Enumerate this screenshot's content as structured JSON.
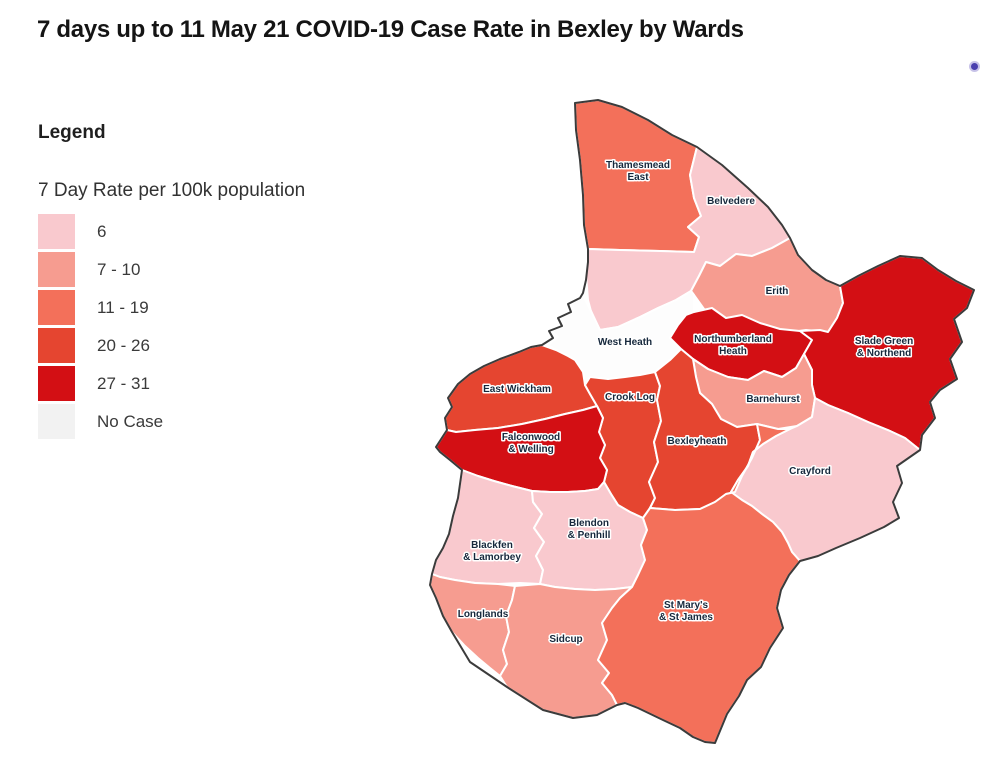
{
  "title": "7 days up to 11 May 21 COVID-19 Case Rate in Bexley by Wards",
  "legend": {
    "heading": "Legend",
    "subtitle": "7 Day Rate per 100k population",
    "items": [
      {
        "label": "6",
        "color": "#f9c9ce"
      },
      {
        "label": "7 - 10",
        "color": "#f69c90"
      },
      {
        "label": "11 - 19",
        "color": "#f3705a"
      },
      {
        "label": "20 - 26",
        "color": "#e54530"
      },
      {
        "label": "27 - 31",
        "color": "#d30f14"
      },
      {
        "label": "No Case",
        "color": "#f2f2f2"
      }
    ]
  },
  "map": {
    "outline_color": "#3b3b3b",
    "boundary_color": "#ffffff",
    "label_color": "#16283c",
    "no_case_fill": "#fdfdfd",
    "wards": [
      {
        "name": "Thamesmead East",
        "band": "11 - 19",
        "label_lines": [
          "Thamesmead",
          "East"
        ]
      },
      {
        "name": "Belvedere",
        "band": "6",
        "label_lines": [
          "Belvedere"
        ]
      },
      {
        "name": "Erith",
        "band": "7 - 10",
        "label_lines": [
          "Erith"
        ]
      },
      {
        "name": "West Heath",
        "band": "No Case",
        "label_lines": [
          "West Heath"
        ]
      },
      {
        "name": "Northumberland Heath",
        "band": "27 - 31",
        "label_lines": [
          "Northumberland",
          "Heath"
        ]
      },
      {
        "name": "Slade Green & Northend",
        "band": "27 - 31",
        "label_lines": [
          "Slade Green",
          "& Northend"
        ]
      },
      {
        "name": "Barnehurst",
        "band": "7 - 10",
        "label_lines": [
          "Barnehurst"
        ]
      },
      {
        "name": "East Wickham",
        "band": "20 - 26",
        "label_lines": [
          "East Wickham"
        ]
      },
      {
        "name": "Crook Log",
        "band": "20 - 26",
        "label_lines": [
          "Crook Log"
        ]
      },
      {
        "name": "Falconwood & Welling",
        "band": "27 - 31",
        "label_lines": [
          "Falconwood",
          "& Welling"
        ]
      },
      {
        "name": "Bexleyheath",
        "band": "20 - 26",
        "label_lines": [
          "Bexleyheath"
        ]
      },
      {
        "name": "Crayford",
        "band": "6",
        "label_lines": [
          "Crayford"
        ]
      },
      {
        "name": "Blackfen & Lamorbey",
        "band": "6",
        "label_lines": [
          "Blackfen",
          "& Lamorbey"
        ]
      },
      {
        "name": "Blendon & Penhill",
        "band": "6",
        "label_lines": [
          "Blendon",
          "& Penhill"
        ]
      },
      {
        "name": "Longlands",
        "band": "7 - 10",
        "label_lines": [
          "Longlands"
        ]
      },
      {
        "name": "Sidcup",
        "band": "7 - 10",
        "label_lines": [
          "Sidcup"
        ]
      },
      {
        "name": "St Mary's & St James",
        "band": "11 - 19",
        "label_lines": [
          "St Mary's",
          "& St James"
        ]
      }
    ]
  },
  "marker": {
    "color": "#4a3fae",
    "halo_color": "#c7c2e8"
  }
}
